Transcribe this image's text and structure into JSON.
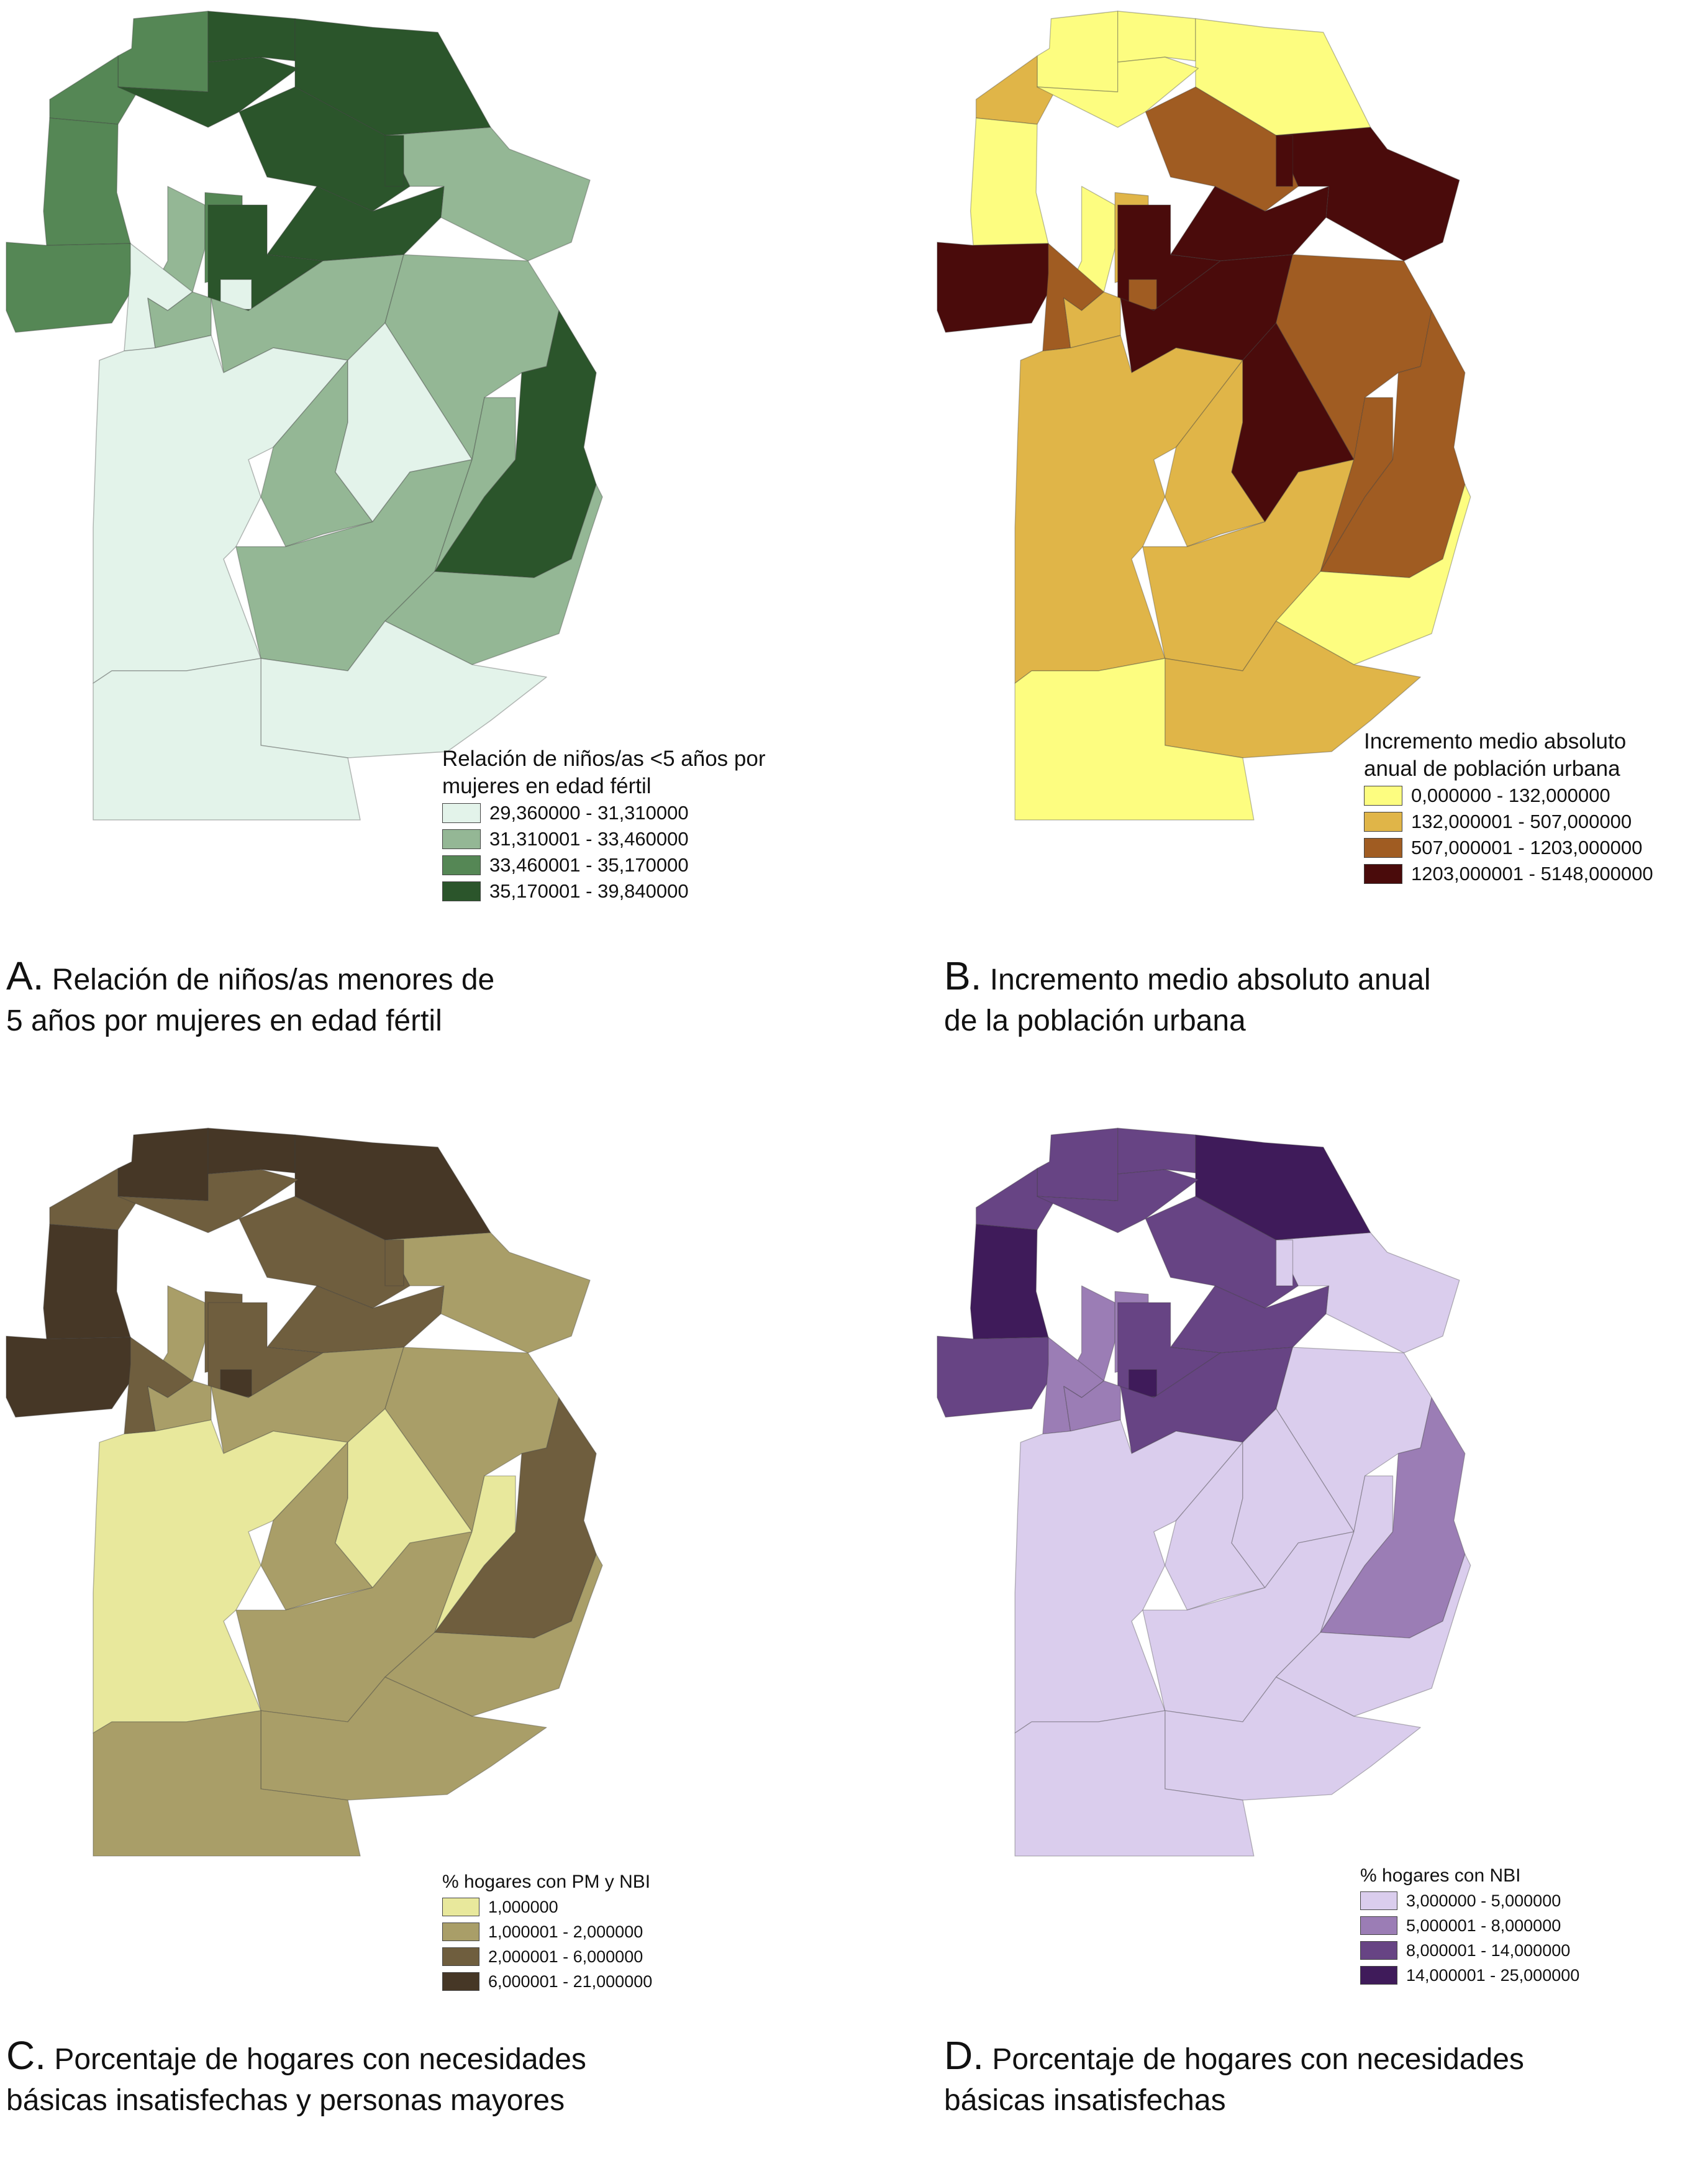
{
  "panels": [
    {
      "id": "A",
      "legend": {
        "title": "Relación de niños/as <5 años por\nmujeres en edad fértil",
        "classes": [
          {
            "label": "29,360000 - 31,310000",
            "color": "#e3f3ea"
          },
          {
            "label": "31,310001 - 33,460000",
            "color": "#94b795"
          },
          {
            "label": "33,460001 - 35,170000",
            "color": "#558755"
          },
          {
            "label": "35,170001 - 39,840000",
            "color": "#2b552b"
          }
        ]
      },
      "caption": {
        "letter": "A.",
        "text": " Relación de niños/as menores de\n5 años por mujeres en edad fértil"
      },
      "regions": [
        2,
        3,
        3,
        2,
        3,
        2,
        2,
        1,
        2,
        3,
        3,
        3,
        1,
        0,
        0,
        1,
        1,
        1,
        0,
        1,
        0,
        1,
        1,
        3,
        3,
        1,
        0,
        0
      ]
    },
    {
      "id": "B",
      "legend": {
        "title": "Incremento medio absoluto\nanual de población urbana",
        "classes": [
          {
            "label": "0,000000 - 132,000000",
            "color": "#fdfd80"
          },
          {
            "label": "132,000001 - 507,000000",
            "color": "#e0b548"
          },
          {
            "label": "507,000001 - 1203,000000",
            "color": "#a05c22"
          },
          {
            "label": "1203,000001 - 5148,000000",
            "color": "#4a0b0b"
          }
        ]
      },
      "caption": {
        "letter": "B.",
        "text": " Incremento medio absoluto anual\nde la población urbana"
      },
      "regions": [
        0,
        0,
        0,
        1,
        0,
        0,
        3,
        0,
        1,
        2,
        3,
        3,
        3,
        2,
        2,
        1,
        3,
        2,
        1,
        1,
        3,
        1,
        2,
        3,
        2,
        0,
        1,
        0
      ]
    },
    {
      "id": "C",
      "legend": {
        "title": "% hogares con PM y NBI",
        "classes": [
          {
            "label": "1,000000",
            "color": "#e8e89c"
          },
          {
            "label": "1,000001 - 2,000000",
            "color": "#a99e68"
          },
          {
            "label": "2,000001 - 6,000000",
            "color": "#6f5e3e"
          },
          {
            "label": "6,000001 - 21,000000",
            "color": "#463726"
          }
        ]
      },
      "caption": {
        "letter": "C.",
        "text": " Porcentaje de hogares con necesidades\nbásicas insatisfechas y personas mayores"
      },
      "regions": [
        3,
        3,
        3,
        2,
        2,
        3,
        3,
        1,
        2,
        2,
        2,
        2,
        1,
        3,
        2,
        1,
        1,
        1,
        0,
        1,
        0,
        1,
        0,
        2,
        2,
        1,
        1,
        1
      ]
    },
    {
      "id": "D",
      "legend": {
        "title": "% hogares con NBI",
        "classes": [
          {
            "label": "3,000000 - 5,000000",
            "color": "#dacded"
          },
          {
            "label": "5,000001 - 8,000000",
            "color": "#9b7db5"
          },
          {
            "label": "8,000001 - 14,000000",
            "color": "#674484"
          },
          {
            "label": "14,000001 - 25,000000",
            "color": "#3f1b5a"
          }
        ]
      },
      "caption": {
        "letter": "D.",
        "text": " Porcentaje de hogares con necesidades\nbásicas insatisfechas"
      },
      "regions": [
        2,
        2,
        3,
        2,
        2,
        3,
        2,
        1,
        1,
        2,
        2,
        2,
        0,
        3,
        1,
        1,
        2,
        0,
        0,
        0,
        0,
        0,
        0,
        0,
        1,
        0,
        0,
        0
      ]
    }
  ]
}
